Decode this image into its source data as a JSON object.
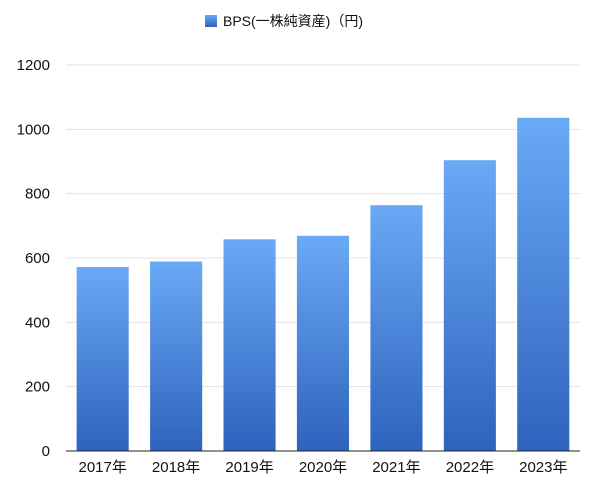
{
  "chart_data": {
    "type": "bar",
    "title": "",
    "xlabel": "",
    "ylabel": "",
    "categories": [
      "2017年",
      "2018年",
      "2019年",
      "2020年",
      "2021年",
      "2022年",
      "2023年"
    ],
    "series": [
      {
        "name": "BPS(一株純資産)（円)",
        "values": [
          572,
          589,
          658,
          669,
          764,
          904,
          1036
        ]
      }
    ],
    "ylim": [
      0,
      1200
    ],
    "yticks": [
      0,
      200,
      400,
      600,
      800,
      1000,
      1200
    ],
    "grid": true,
    "legend_position": "top-center",
    "colors": {
      "bar_top": "#6aa9f5",
      "bar_bottom": "#2e63bd",
      "legend_swatch": "#4a87db"
    }
  }
}
